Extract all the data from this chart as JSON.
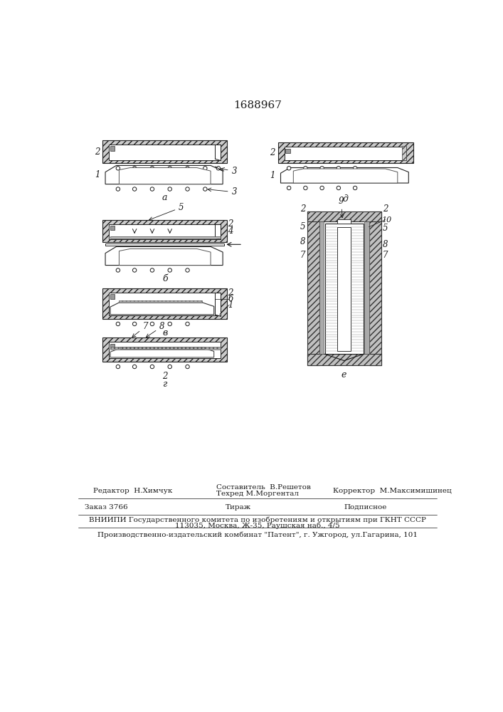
{
  "title": "1688967",
  "title_fontsize": 11,
  "bg_color": "#ffffff",
  "line_color": "#1a1a1a",
  "hatch_color": "#333333",
  "footer": {
    "editor": "Редактор  Н.Химчук",
    "composer": "Составитель  В.Решетов",
    "techred": "Техред М.Моргентал",
    "corrector": "Корректор  М.Максимишинец",
    "order": "Заказ 3766",
    "tirazh": "Тираж",
    "podpisnoe": "Подписное",
    "vniipki": "ВНИИПИ Государственного комитета по изобретениям и открытиям при ГКНТ СССР",
    "address": "113035, Москва, Ж-35, Раушская наб., 4/5",
    "patent": "Производственно-издательский комбинат \"Патент\", г. Ужгород, ул.Гагарина, 101"
  }
}
